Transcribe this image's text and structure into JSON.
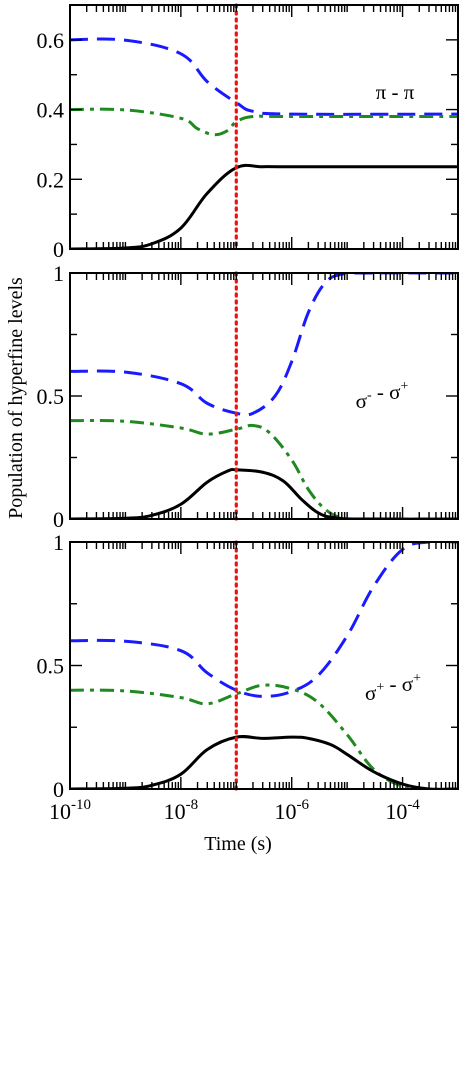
{
  "colors": {
    "black_series": "#000000",
    "blue_series": "#1a1aff",
    "green_series": "#1f8a1f",
    "marker_line": "#ee1111",
    "axes": "#000000"
  },
  "axes": {
    "xlabel": "Time (s)",
    "ylabel": "Population of hyperfine levels"
  },
  "chart_data": [
    {
      "type": "line",
      "panel_label": "π - π",
      "xscale": "log",
      "xlim": [
        1e-10,
        0.001
      ],
      "ylim": [
        0,
        0.7
      ],
      "yticks": [
        0,
        0.2,
        0.4,
        0.6
      ],
      "ytick_labels": [
        "0",
        "0.2",
        "0.4",
        "0.6"
      ],
      "vline_x": 1e-07,
      "series": [
        {
          "style": "dashed",
          "color": "blue",
          "x": [
            1e-10,
            1e-09,
            1e-08,
            3e-08,
            1e-07,
            2e-07,
            1e-06,
            0.001
          ],
          "y": [
            0.6,
            0.599,
            0.56,
            0.48,
            0.42,
            0.395,
            0.387,
            0.387
          ]
        },
        {
          "style": "dash-dot",
          "color": "green",
          "x": [
            1e-10,
            1e-09,
            1e-08,
            2e-08,
            4e-08,
            7e-08,
            1e-07,
            2e-07,
            1e-06,
            0.001
          ],
          "y": [
            0.4,
            0.399,
            0.375,
            0.345,
            0.328,
            0.34,
            0.365,
            0.38,
            0.38,
            0.38
          ]
        },
        {
          "style": "solid",
          "color": "black",
          "x": [
            1e-10,
            1e-09,
            3e-09,
            1e-08,
            3e-08,
            1e-07,
            3e-07,
            1e-06,
            0.001
          ],
          "y": [
            0.0,
            0.003,
            0.015,
            0.06,
            0.16,
            0.233,
            0.236,
            0.236,
            0.236
          ]
        }
      ]
    },
    {
      "type": "line",
      "panel_label": "σ⁻ - σ⁺",
      "xscale": "log",
      "xlim": [
        1e-10,
        0.001
      ],
      "ylim": [
        0,
        1
      ],
      "yticks": [
        0,
        0.5,
        1
      ],
      "ytick_labels": [
        "0",
        "0.5",
        "1"
      ],
      "vline_x": 1e-07,
      "series": [
        {
          "style": "dashed",
          "color": "blue",
          "x": [
            1e-10,
            1e-09,
            1e-08,
            3e-08,
            1e-07,
            2e-07,
            5e-07,
            1e-06,
            2e-06,
            4e-06,
            8e-06,
            2e-05,
            0.001
          ],
          "y": [
            0.6,
            0.597,
            0.55,
            0.47,
            0.43,
            0.43,
            0.5,
            0.64,
            0.84,
            0.96,
            0.995,
            1.0,
            1.0
          ]
        },
        {
          "style": "dash-dot",
          "color": "green",
          "x": [
            1e-10,
            1e-09,
            1e-08,
            3e-08,
            1e-07,
            2e-07,
            4e-07,
            1e-06,
            2e-06,
            4e-06,
            8e-06,
            2e-05,
            0.001
          ],
          "y": [
            0.4,
            0.397,
            0.37,
            0.345,
            0.365,
            0.38,
            0.35,
            0.24,
            0.12,
            0.04,
            0.005,
            0.0,
            0.0
          ]
        },
        {
          "style": "solid",
          "color": "black",
          "x": [
            1e-10,
            1e-09,
            3e-09,
            1e-08,
            3e-08,
            7e-08,
            1e-07,
            3e-07,
            7e-07,
            1.5e-06,
            3e-06,
            6e-06,
            2e-05,
            0.001
          ],
          "y": [
            0.0,
            0.003,
            0.015,
            0.06,
            0.15,
            0.195,
            0.2,
            0.19,
            0.155,
            0.08,
            0.025,
            0.005,
            0.0,
            0.0
          ]
        }
      ]
    },
    {
      "type": "line",
      "panel_label": "σ⁺ - σ⁺",
      "xscale": "log",
      "xlim": [
        1e-10,
        0.001
      ],
      "ylim": [
        0,
        1
      ],
      "yticks": [
        0,
        0.5,
        1
      ],
      "ytick_labels": [
        "0",
        "0.5",
        "1"
      ],
      "xticks": [
        1e-10,
        1e-08,
        1e-06,
        0.0001
      ],
      "xtick_labels": [
        {
          "base": "10",
          "exp": "-10"
        },
        {
          "base": "10",
          "exp": "-8"
        },
        {
          "base": "10",
          "exp": "-6"
        },
        {
          "base": "10",
          "exp": "-4"
        }
      ],
      "vline_x": 1e-07,
      "series": [
        {
          "style": "dashed",
          "color": "blue",
          "x": [
            1e-10,
            1e-09,
            1e-08,
            3e-08,
            1e-07,
            3e-07,
            1e-06,
            3e-06,
            1e-05,
            3e-05,
            0.0001,
            0.0003,
            0.001
          ],
          "y": [
            0.6,
            0.598,
            0.56,
            0.47,
            0.4,
            0.375,
            0.395,
            0.46,
            0.62,
            0.82,
            0.97,
            1.0,
            1.0
          ]
        },
        {
          "style": "dash-dot",
          "color": "green",
          "x": [
            1e-10,
            1e-09,
            1e-08,
            3e-08,
            1e-07,
            3e-07,
            1e-06,
            3e-06,
            1e-05,
            3e-05,
            0.0001,
            0.0003,
            0.001
          ],
          "y": [
            0.4,
            0.397,
            0.37,
            0.345,
            0.385,
            0.42,
            0.405,
            0.35,
            0.22,
            0.08,
            0.01,
            0.0,
            0.0
          ]
        },
        {
          "style": "solid",
          "color": "black",
          "x": [
            1e-10,
            1e-09,
            3e-09,
            1e-08,
            3e-08,
            1e-07,
            3e-07,
            1e-06,
            2e-06,
            5e-06,
            1e-05,
            3e-05,
            0.0001,
            0.0003,
            0.001
          ],
          "y": [
            0.0,
            0.003,
            0.015,
            0.06,
            0.16,
            0.21,
            0.205,
            0.21,
            0.205,
            0.18,
            0.14,
            0.07,
            0.02,
            0.0,
            0.0
          ]
        }
      ]
    }
  ]
}
